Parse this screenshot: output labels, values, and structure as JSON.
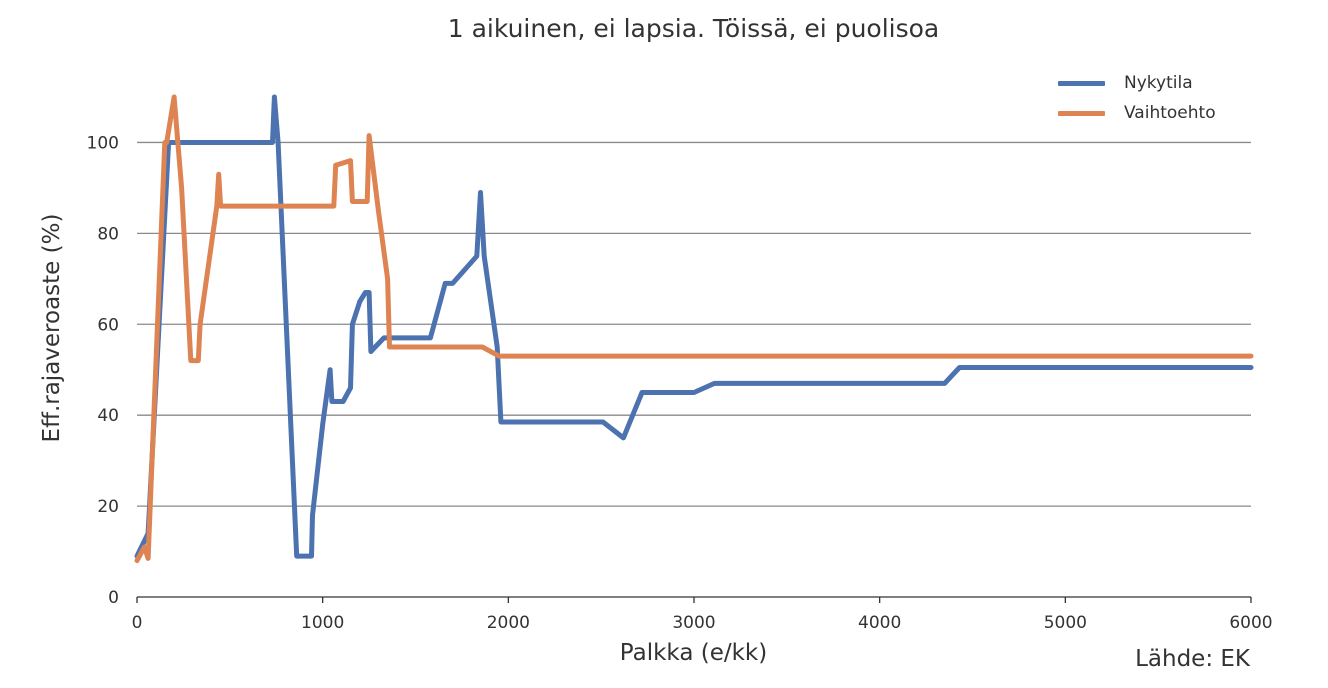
{
  "chart_data": {
    "type": "line",
    "title": "1 aikuinen, ei lapsia. Töissä, ei puolisoa",
    "xlabel": "Palkka (e/kk)",
    "ylabel": "Eff.rajaveroaste (%)",
    "source": "Lähde: EK",
    "xlim": [
      0,
      6000
    ],
    "ylim": [
      0,
      110
    ],
    "xticks": [
      0,
      1000,
      2000,
      3000,
      4000,
      5000,
      6000
    ],
    "yticks": [
      0,
      20,
      40,
      60,
      80,
      100
    ],
    "grid": "horizontal",
    "legend_position": "top-right",
    "series": [
      {
        "name": "Nykytila",
        "color": "#4C72B0",
        "points": [
          [
            0,
            9
          ],
          [
            60,
            14
          ],
          [
            170,
            100
          ],
          [
            200,
            100
          ],
          [
            730,
            100
          ],
          [
            740,
            110
          ],
          [
            760,
            100
          ],
          [
            860,
            9
          ],
          [
            940,
            9
          ],
          [
            945,
            18
          ],
          [
            1000,
            38
          ],
          [
            1040,
            50
          ],
          [
            1050,
            43
          ],
          [
            1110,
            43
          ],
          [
            1150,
            46
          ],
          [
            1160,
            60
          ],
          [
            1200,
            65
          ],
          [
            1230,
            67
          ],
          [
            1250,
            67
          ],
          [
            1260,
            54
          ],
          [
            1330,
            57
          ],
          [
            1580,
            57
          ],
          [
            1660,
            69
          ],
          [
            1700,
            69
          ],
          [
            1830,
            75
          ],
          [
            1850,
            89
          ],
          [
            1870,
            75
          ],
          [
            1940,
            55
          ],
          [
            1960,
            38.5
          ],
          [
            2000,
            38.5
          ],
          [
            2510,
            38.5
          ],
          [
            2620,
            35
          ],
          [
            2720,
            45
          ],
          [
            3000,
            45
          ],
          [
            3110,
            47
          ],
          [
            4350,
            47
          ],
          [
            4430,
            50.5
          ],
          [
            6000,
            50.5
          ]
        ]
      },
      {
        "name": "Vaihtoehto",
        "color": "#DD8452",
        "points": [
          [
            0,
            8
          ],
          [
            40,
            11
          ],
          [
            60,
            8.5
          ],
          [
            150,
            100
          ],
          [
            160,
            100
          ],
          [
            200,
            110
          ],
          [
            240,
            90
          ],
          [
            290,
            52
          ],
          [
            330,
            52
          ],
          [
            340,
            60
          ],
          [
            430,
            86
          ],
          [
            440,
            93
          ],
          [
            450,
            86
          ],
          [
            1060,
            86
          ],
          [
            1070,
            95
          ],
          [
            1150,
            96
          ],
          [
            1160,
            87
          ],
          [
            1240,
            87
          ],
          [
            1250,
            101.5
          ],
          [
            1300,
            85
          ],
          [
            1350,
            70
          ],
          [
            1360,
            55
          ],
          [
            1860,
            55
          ],
          [
            1950,
            53
          ],
          [
            6000,
            53
          ]
        ]
      }
    ]
  }
}
